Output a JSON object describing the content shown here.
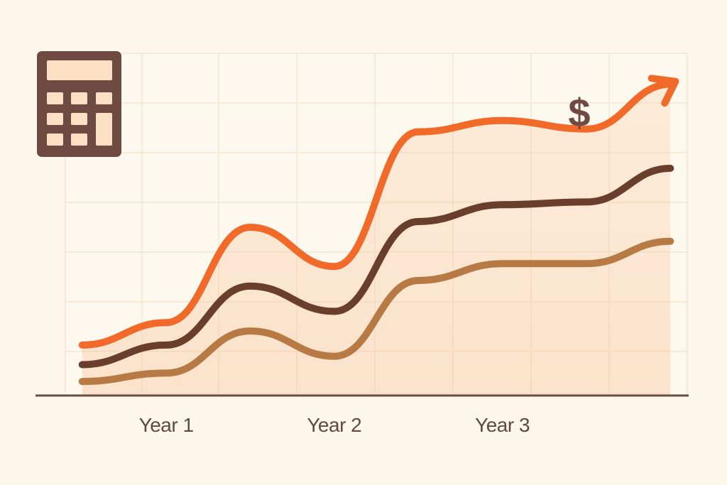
{
  "chart_data": {
    "type": "area",
    "categories": [
      "Year 1",
      "Year 2",
      "Year 3"
    ],
    "x": [
      0,
      0.5,
      1,
      1.5,
      2,
      2.5,
      3,
      3.5
    ],
    "series": [
      {
        "values": [
          0.8,
          1.2,
          2.9,
          2.2,
          4.6,
          4.8,
          4.65,
          5.45
        ],
        "color": "#f26a2a"
      },
      {
        "values": [
          0.45,
          0.8,
          1.85,
          1.4,
          3.0,
          3.3,
          3.35,
          3.95
        ],
        "color": "#6a3e2c"
      },
      {
        "values": [
          0.15,
          0.3,
          1.05,
          0.6,
          1.95,
          2.25,
          2.25,
          2.65
        ],
        "color": "#b87a44"
      }
    ],
    "ylim": [
      -0.1,
      6.0
    ],
    "xlim": [
      -0.1,
      3.6
    ],
    "grid": true,
    "arrow": true
  },
  "icons": {
    "calculator": "calculator-icon",
    "dollar": "dollar-sign-icon",
    "dollar_glyph": "$"
  },
  "colors": {
    "background": "#fdf6ea",
    "plot_background": "#fef9ef",
    "grid": "#f3e6d4",
    "axis": "#6d4d42",
    "calculator": "#6e4a42",
    "calculator_keys": "#fbe0c3",
    "area_fill": "#f8c9a0",
    "dollar": "#6e4a42"
  }
}
